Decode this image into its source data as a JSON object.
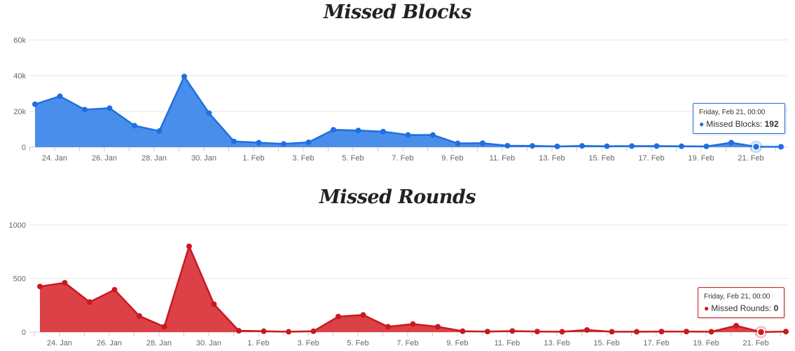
{
  "chart_data": [
    {
      "type": "area",
      "title": "Missed Blocks",
      "color": "#1e6fe0",
      "fill": "#3f88ea",
      "ylim": [
        0,
        60000
      ],
      "y_ticks": [
        0,
        20000,
        40000,
        60000
      ],
      "y_tick_labels": [
        "0",
        "20k",
        "40k",
        "60k"
      ],
      "x_tick_labels": [
        "24. Jan",
        "26. Jan",
        "28. Jan",
        "30. Jan",
        "1. Feb",
        "3. Feb",
        "5. Feb",
        "7. Feb",
        "9. Feb",
        "11. Feb",
        "13. Feb",
        "15. Feb",
        "17. Feb",
        "19. Feb",
        "21. Feb"
      ],
      "x": [
        "23. Jan",
        "24. Jan",
        "25. Jan",
        "26. Jan",
        "27. Jan",
        "28. Jan",
        "29. Jan",
        "30. Jan",
        "31. Jan",
        "1. Feb",
        "2. Feb",
        "3. Feb",
        "4. Feb",
        "5. Feb",
        "6. Feb",
        "7. Feb",
        "8. Feb",
        "9. Feb",
        "10. Feb",
        "11. Feb",
        "12. Feb",
        "13. Feb",
        "14. Feb",
        "15. Feb",
        "16. Feb",
        "17. Feb",
        "18. Feb",
        "19. Feb",
        "20. Feb",
        "21. Feb",
        "22. Feb"
      ],
      "series": [
        {
          "name": "Missed Blocks",
          "values": [
            24000,
            28500,
            21000,
            21800,
            12000,
            9000,
            39500,
            19000,
            3200,
            2500,
            1800,
            2700,
            9700,
            9300,
            8700,
            6800,
            6800,
            2100,
            2200,
            800,
            700,
            400,
            700,
            500,
            600,
            600,
            500,
            400,
            2500,
            192,
            200
          ]
        }
      ],
      "grid": true,
      "legend": "none",
      "tooltip": {
        "date": "Friday, Feb 21, 00:00",
        "label": "Missed Blocks",
        "value": "192"
      }
    },
    {
      "type": "area",
      "title": "Missed Rounds",
      "color": "#c9191f",
      "fill": "#d9373d",
      "ylim": [
        0,
        1000
      ],
      "y_ticks": [
        0,
        500,
        1000
      ],
      "y_tick_labels": [
        "0",
        "500",
        "1000"
      ],
      "x_tick_labels": [
        "24. Jan",
        "26. Jan",
        "28. Jan",
        "30. Jan",
        "1. Feb",
        "3. Feb",
        "5. Feb",
        "7. Feb",
        "9. Feb",
        "11. Feb",
        "13. Feb",
        "15. Feb",
        "17. Feb",
        "19. Feb",
        "21. Feb"
      ],
      "x": [
        "23. Jan",
        "24. Jan",
        "25. Jan",
        "26. Jan",
        "27. Jan",
        "28. Jan",
        "29. Jan",
        "30. Jan",
        "31. Jan",
        "1. Feb",
        "2. Feb",
        "3. Feb",
        "4. Feb",
        "5. Feb",
        "6. Feb",
        "7. Feb",
        "8. Feb",
        "9. Feb",
        "10. Feb",
        "11. Feb",
        "12. Feb",
        "13. Feb",
        "14. Feb",
        "15. Feb",
        "16. Feb",
        "17. Feb",
        "18. Feb",
        "19. Feb",
        "20. Feb",
        "21. Feb",
        "22. Feb"
      ],
      "series": [
        {
          "name": "Missed Rounds",
          "values": [
            425,
            460,
            280,
            395,
            150,
            50,
            800,
            260,
            12,
            8,
            3,
            8,
            145,
            160,
            50,
            75,
            50,
            8,
            5,
            10,
            5,
            3,
            20,
            3,
            3,
            5,
            5,
            3,
            60,
            0,
            5
          ]
        }
      ],
      "grid": true,
      "legend": "none",
      "tooltip": {
        "date": "Friday, Feb 21, 00:00",
        "label": "Missed Rounds",
        "value": "0"
      }
    }
  ]
}
